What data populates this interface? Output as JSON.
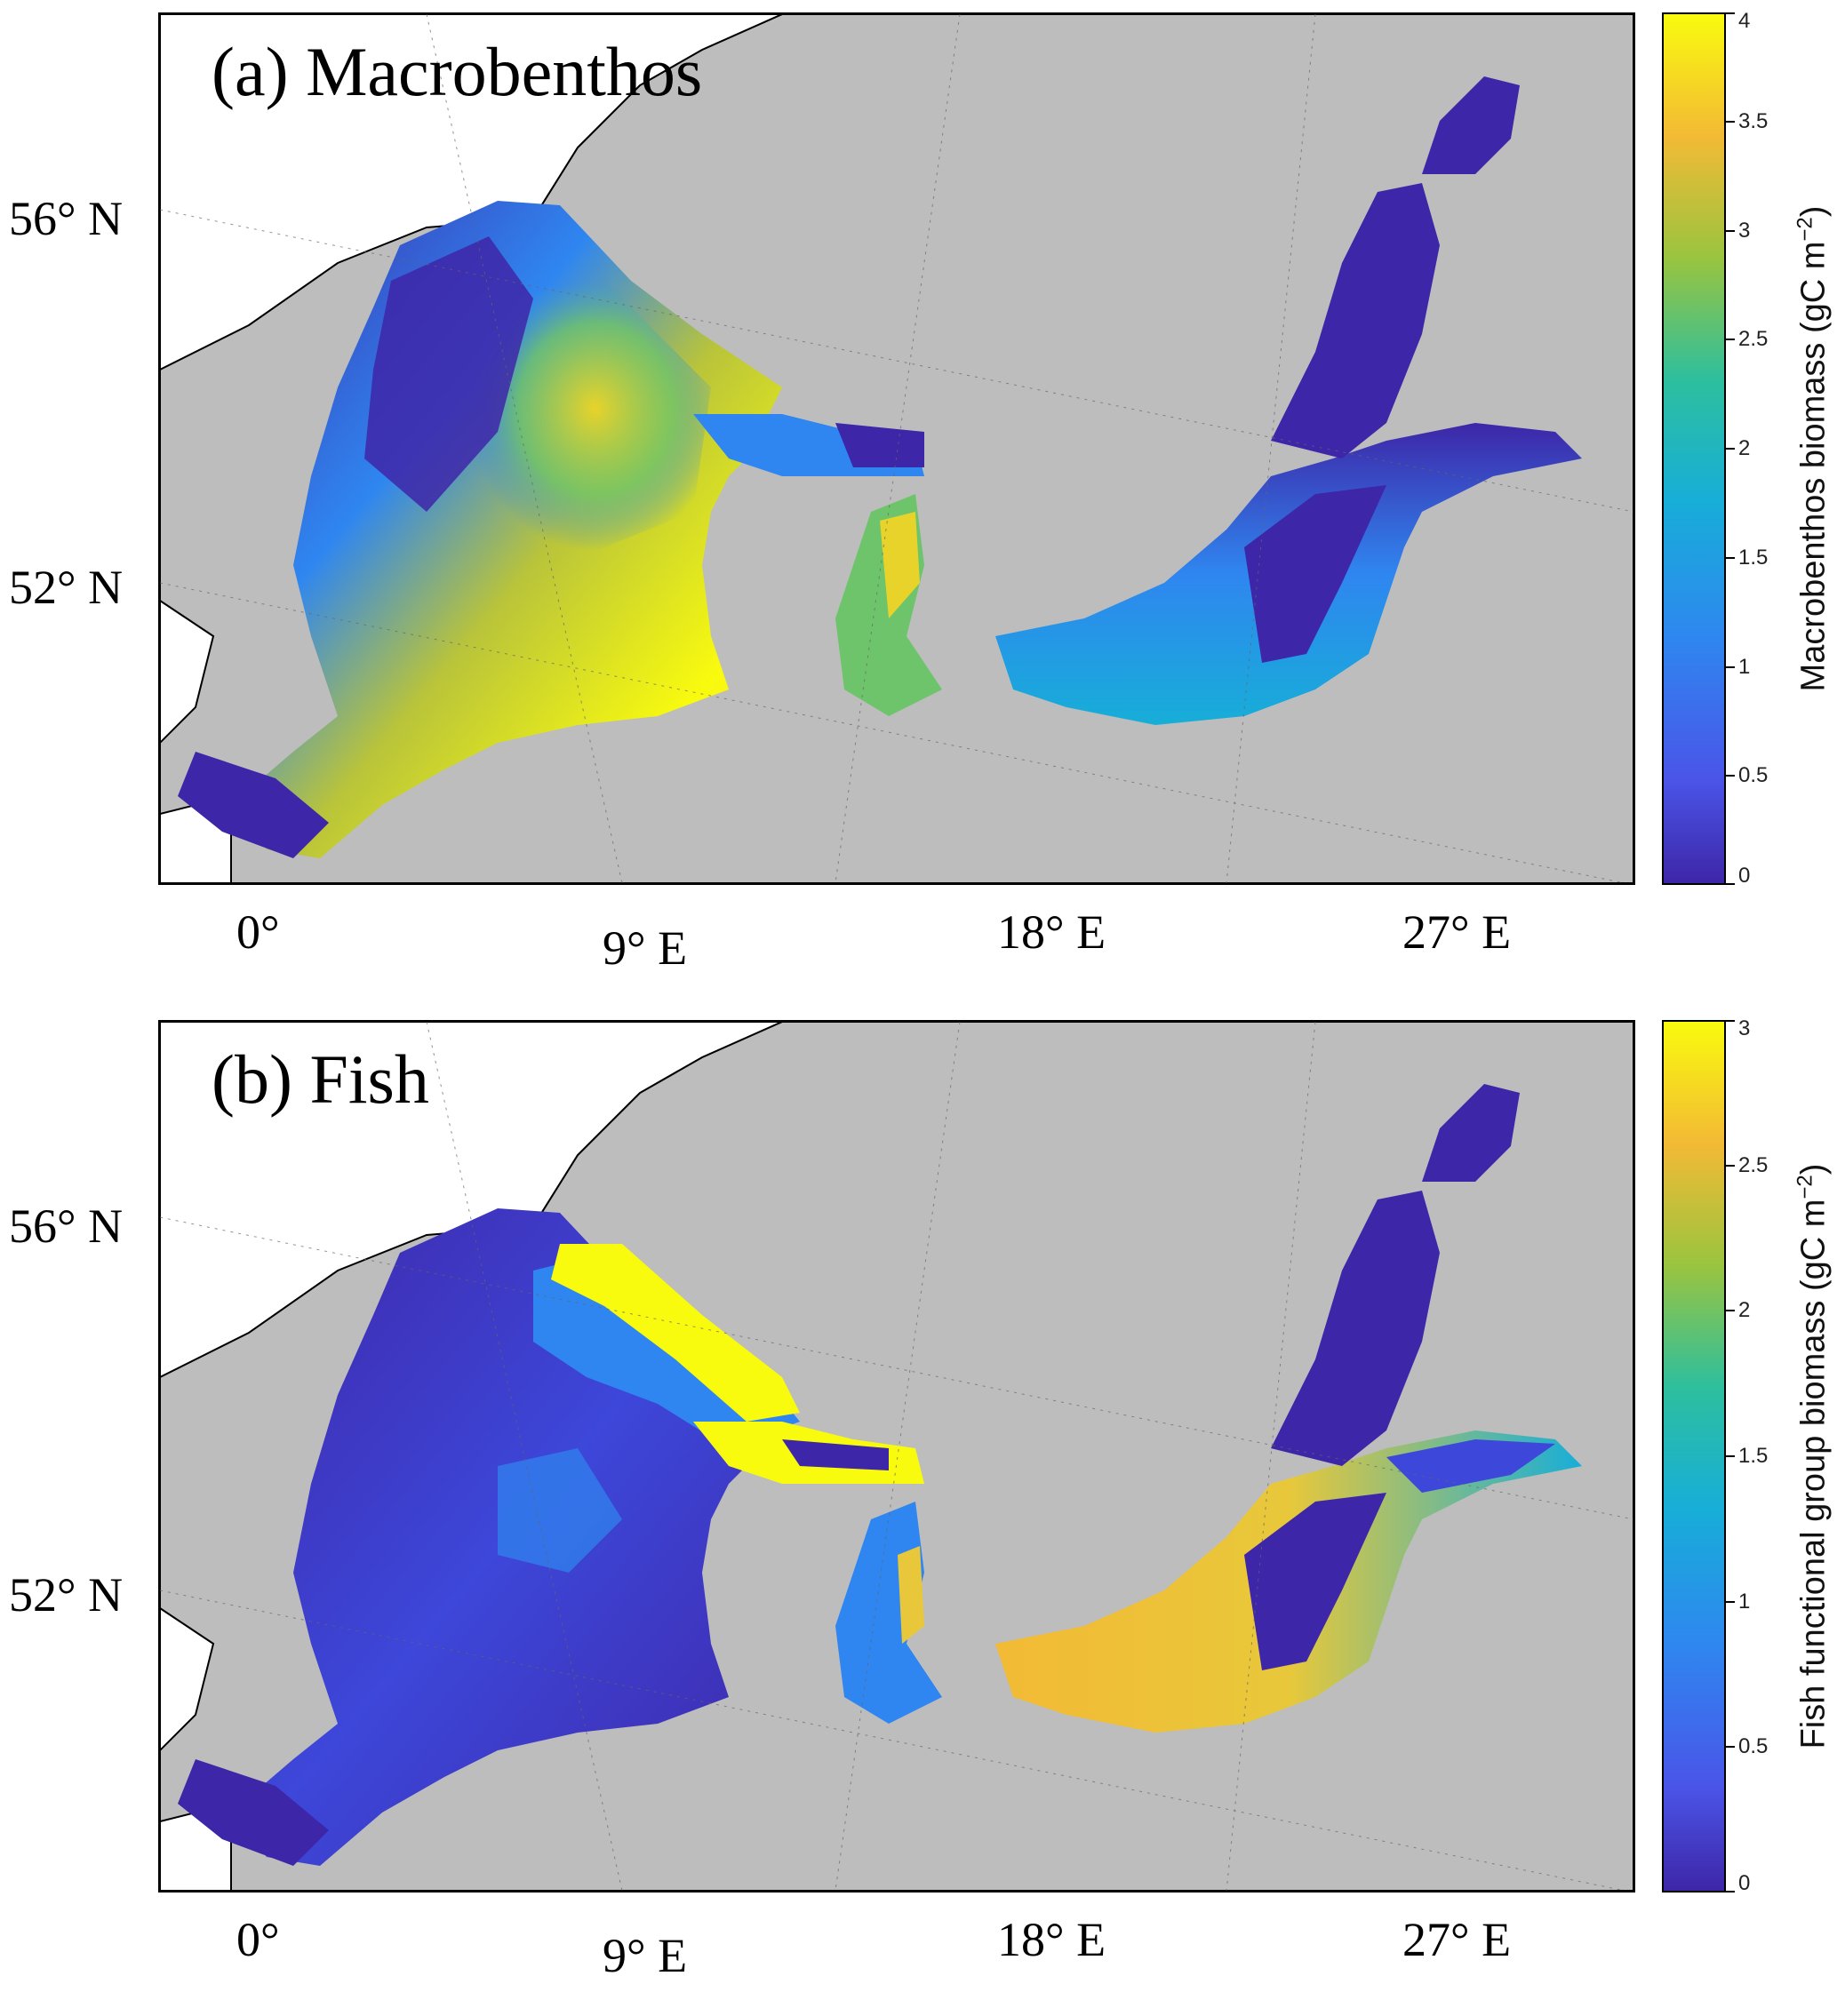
{
  "panels": [
    {
      "label": "(a) Macrobenthos",
      "colorbar": {
        "title_prefix": "Macrobenthos biomass (gC m",
        "title_exp": "−2",
        "title_suffix": ")",
        "min": 0,
        "max": 4,
        "ticks": [
          "0",
          "0.5",
          "1",
          "1.5",
          "2",
          "2.5",
          "3",
          "3.5",
          "4"
        ],
        "colormap": "parula"
      }
    },
    {
      "label": "(b) Fish",
      "colorbar": {
        "title_prefix": "Fish functional group biomass (gC m",
        "title_exp": "−2",
        "title_suffix": ")",
        "min": 0,
        "max": 3,
        "ticks": [
          "0",
          "0.5",
          "1",
          "1.5",
          "2",
          "2.5",
          "3"
        ],
        "colormap": "parula"
      }
    }
  ],
  "lat_labels": [
    "56° N",
    "52° N"
  ],
  "lon_labels": [
    "0°",
    "9° E",
    "18° E",
    "27° E"
  ],
  "colors": {
    "land": "#bdbdbd",
    "coast": "#000000",
    "low": "#3e26a8",
    "mid": "#17aed8",
    "high": "#f9fb0e"
  }
}
